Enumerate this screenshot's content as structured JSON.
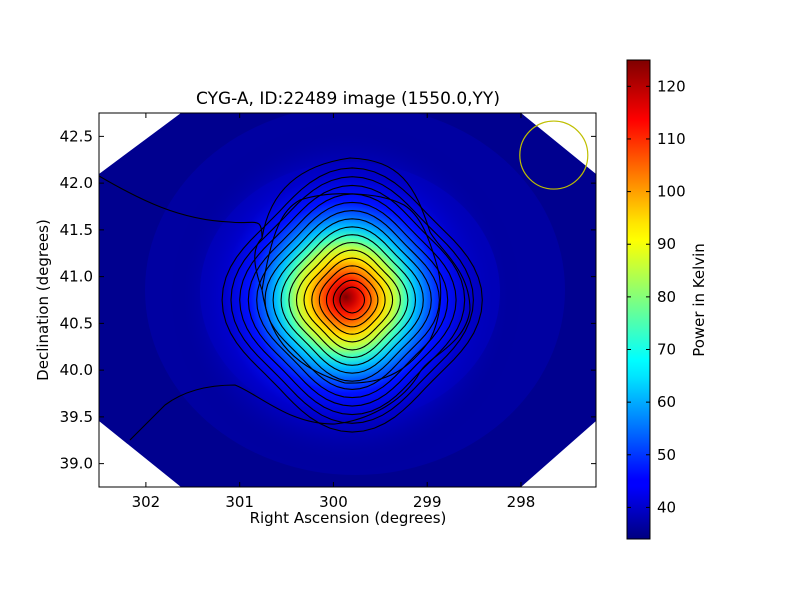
{
  "chart_data": {
    "type": "heatmap",
    "title": "CYG-A, ID:22489 image (1550.0,YY)",
    "xlabel": "Right Ascension (degrees)",
    "ylabel": "Declination (degrees)",
    "xlim": [
      302.5,
      297.2
    ],
    "ylim": [
      38.75,
      42.75
    ],
    "x_ticks": [
      302,
      301,
      300,
      299,
      298
    ],
    "x_tick_labels": [
      "302",
      "301",
      "300",
      "299",
      "298"
    ],
    "y_ticks": [
      39.0,
      39.5,
      40.0,
      40.5,
      41.0,
      41.5,
      42.0,
      42.5
    ],
    "y_tick_labels": [
      "39.0",
      "39.5",
      "40.0",
      "40.5",
      "41.0",
      "41.5",
      "42.0",
      "42.5"
    ],
    "colorbar": {
      "label": "Power in Kelvin",
      "range": [
        34,
        125
      ],
      "ticks": [
        40,
        50,
        60,
        70,
        80,
        90,
        100,
        110,
        120
      ],
      "tick_labels": [
        "40",
        "50",
        "60",
        "70",
        "80",
        "90",
        "100",
        "110",
        "120"
      ],
      "colormap": "jet"
    },
    "peak": {
      "ra": 299.8,
      "dec": 40.75,
      "value": 125
    },
    "background_level": 34,
    "contour_count": 16,
    "beam": {
      "ra": 297.65,
      "dec": 42.3,
      "color": "#bfbf00"
    },
    "blank_corner_color": "#ffffff"
  }
}
